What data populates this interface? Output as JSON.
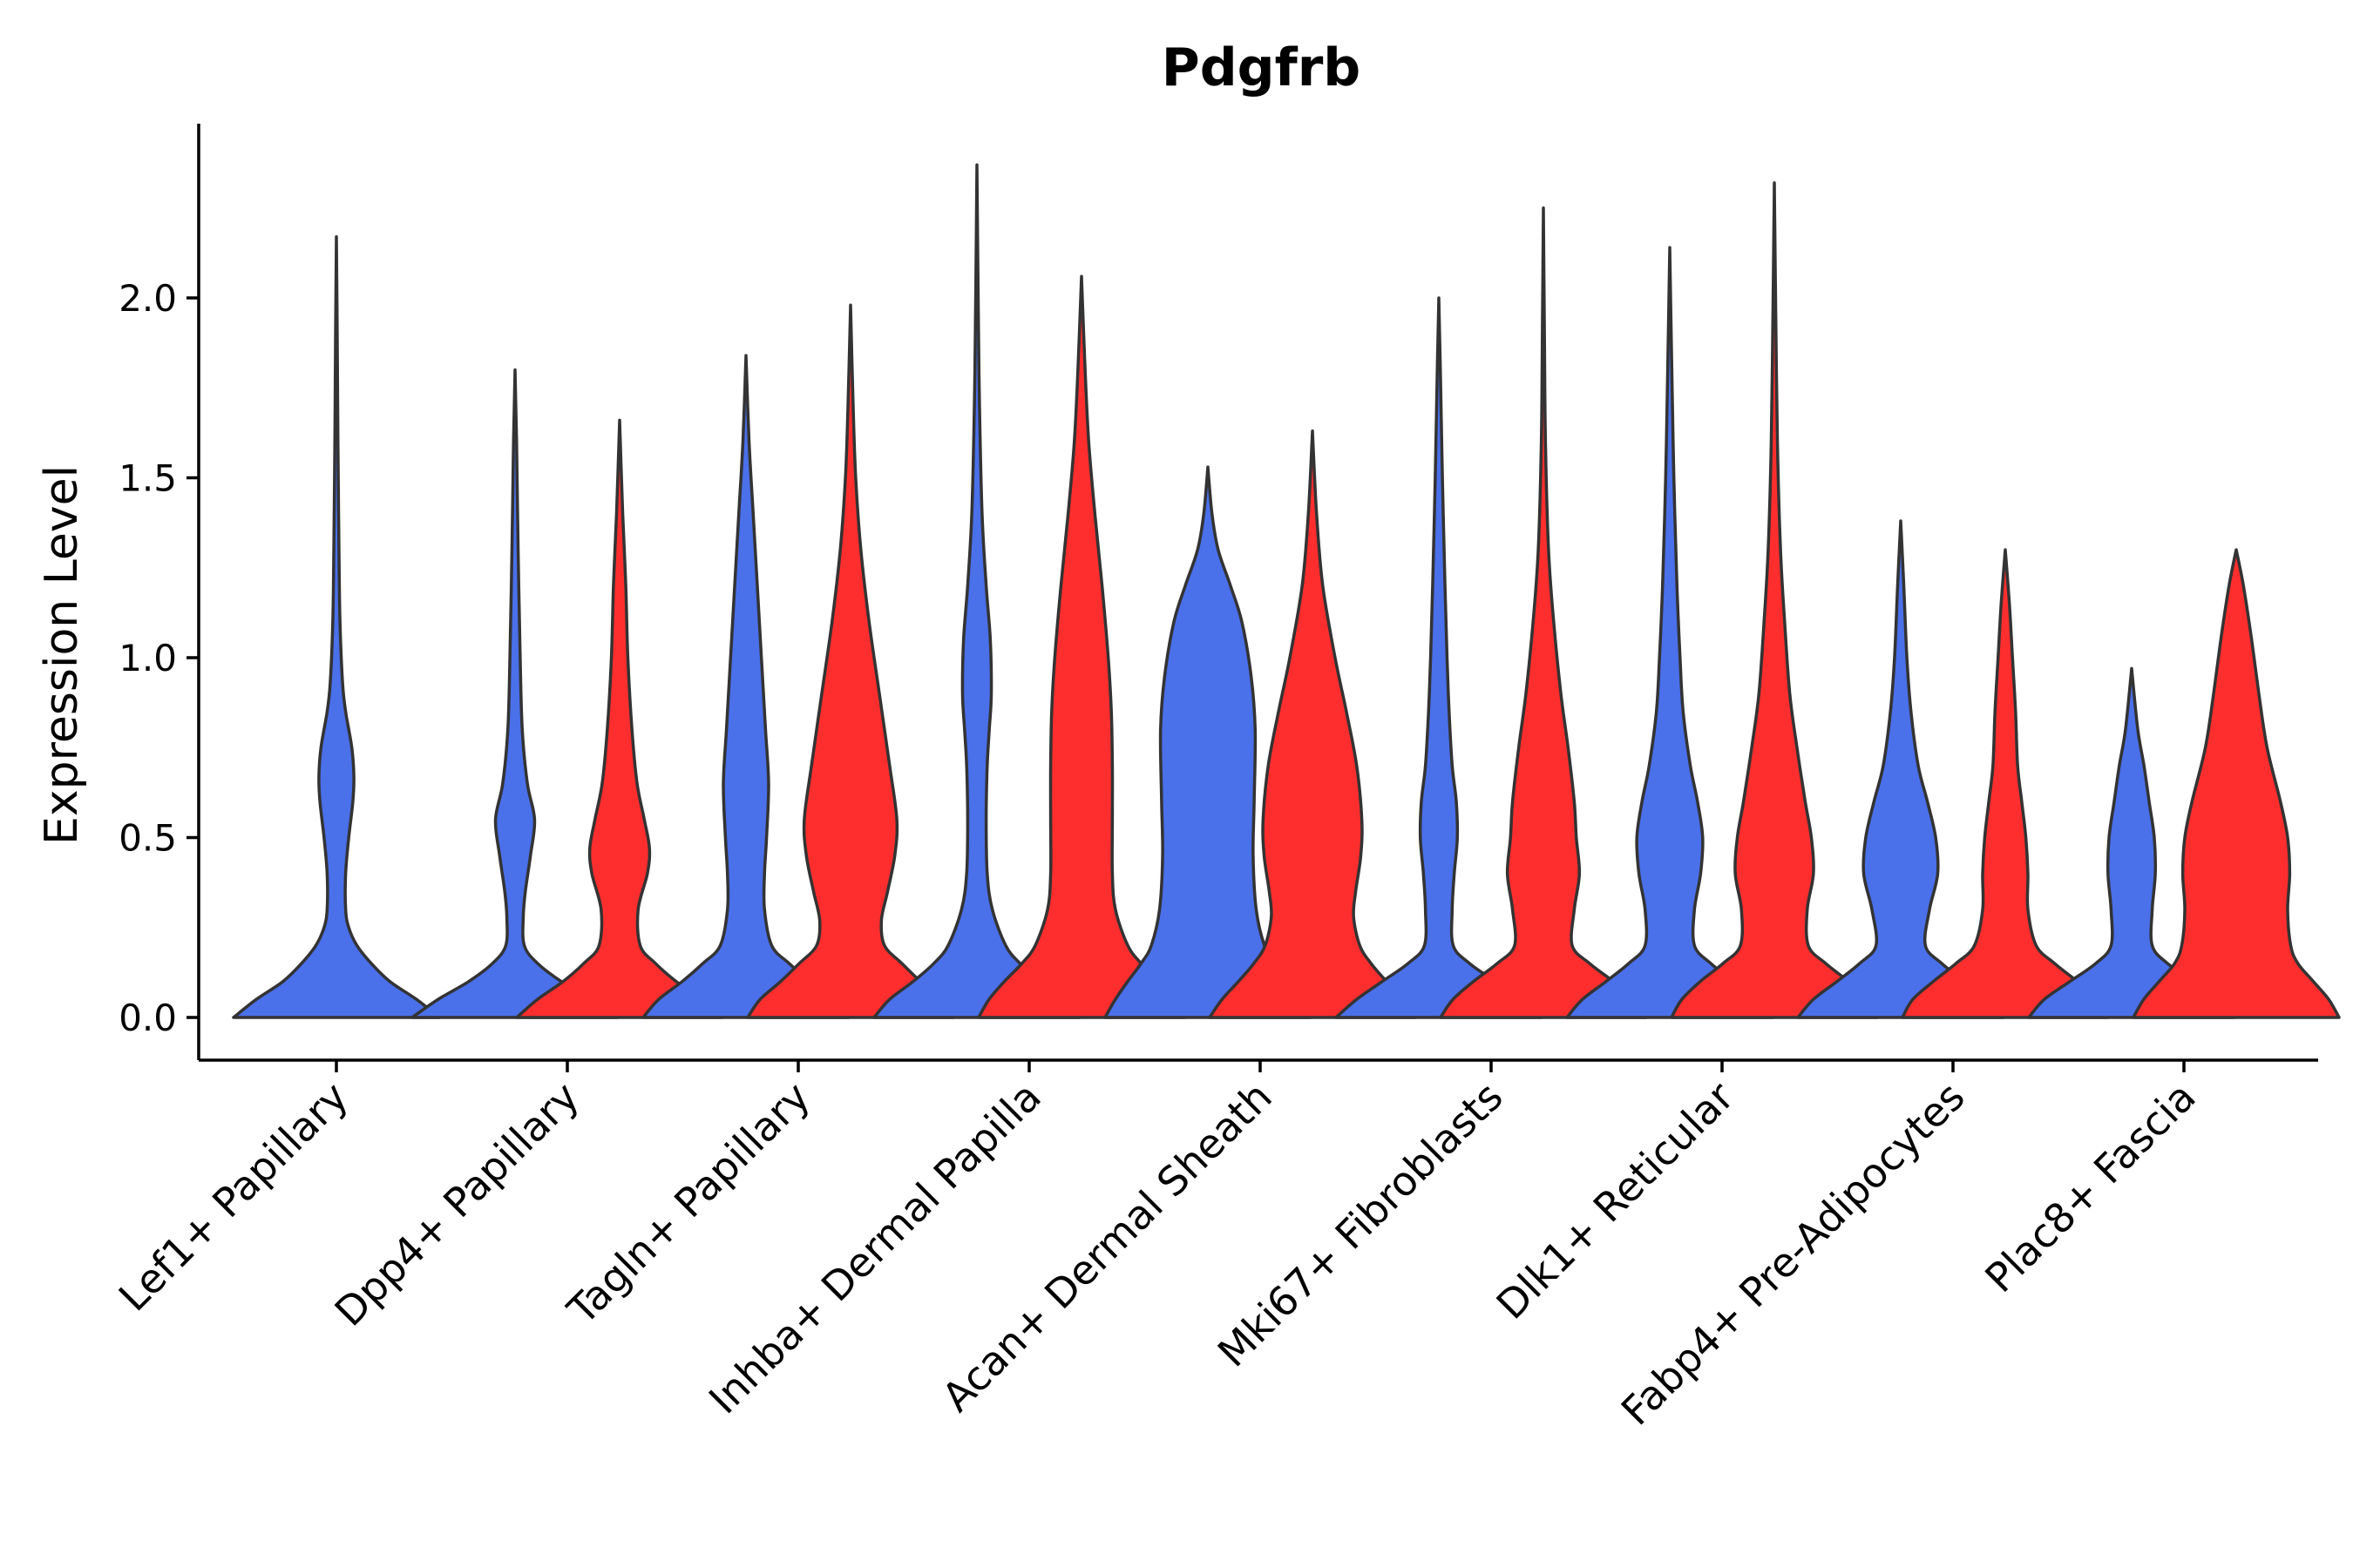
{
  "chart_data": {
    "type": "violin",
    "title": "Pdgfrb",
    "xlabel": "",
    "ylabel": "Expression Level",
    "ylim": [
      -0.12,
      2.5
    ],
    "yticks": [
      0.0,
      0.5,
      1.0,
      1.5,
      2.0
    ],
    "ytick_labels": [
      "0.0",
      "0.5",
      "1.0",
      "1.5",
      "2.0"
    ],
    "grid": false,
    "legend": "none",
    "series": [
      {
        "name": "group-blue",
        "color": "#4A70EA"
      },
      {
        "name": "group-red",
        "color": "#FF2E2E"
      }
    ],
    "categories": [
      "Lef1+ Papillary",
      "Dpp4+ Papillary",
      "Tagln+ Papillary",
      "Inhba+ Dermal Papilla",
      "Acan+ Dermal Sheath",
      "Mki67+ Fibroblasts",
      "Dlk1+ Reticular",
      "Fabp4+ Pre-Adipocytes",
      "Plac8+ Fascia"
    ],
    "violins": [
      {
        "category": "Lef1+ Papillary",
        "series": "group-blue",
        "max": 2.17,
        "profile": [
          [
            0,
            1.0
          ],
          [
            0.05,
            0.78
          ],
          [
            0.1,
            0.52
          ],
          [
            0.15,
            0.34
          ],
          [
            0.2,
            0.2
          ],
          [
            0.25,
            0.12
          ],
          [
            0.3,
            0.09
          ],
          [
            0.4,
            0.09
          ],
          [
            0.5,
            0.12
          ],
          [
            0.6,
            0.16
          ],
          [
            0.67,
            0.17
          ],
          [
            0.75,
            0.15
          ],
          [
            0.85,
            0.09
          ],
          [
            0.93,
            0.06
          ],
          [
            1.1,
            0.035
          ],
          [
            1.3,
            0.025
          ],
          [
            1.6,
            0.015
          ],
          [
            1.9,
            0.008
          ],
          [
            2.17,
            0
          ]
        ]
      },
      {
        "category": "Dpp4+ Papillary",
        "series": "group-blue",
        "max": 1.8,
        "profile": [
          [
            0,
            1.0
          ],
          [
            0.05,
            0.75
          ],
          [
            0.1,
            0.45
          ],
          [
            0.15,
            0.22
          ],
          [
            0.2,
            0.09
          ],
          [
            0.28,
            0.08
          ],
          [
            0.35,
            0.1
          ],
          [
            0.45,
            0.15
          ],
          [
            0.55,
            0.19
          ],
          [
            0.65,
            0.12
          ],
          [
            0.8,
            0.07
          ],
          [
            1.0,
            0.05
          ],
          [
            1.3,
            0.03
          ],
          [
            1.6,
            0.015
          ],
          [
            1.8,
            0
          ]
        ]
      },
      {
        "category": "Dpp4+ Papillary",
        "series": "group-red",
        "max": 1.66,
        "profile": [
          [
            0,
            1.0
          ],
          [
            0.05,
            0.8
          ],
          [
            0.1,
            0.55
          ],
          [
            0.15,
            0.35
          ],
          [
            0.2,
            0.2
          ],
          [
            0.3,
            0.18
          ],
          [
            0.4,
            0.27
          ],
          [
            0.47,
            0.29
          ],
          [
            0.55,
            0.24
          ],
          [
            0.65,
            0.17
          ],
          [
            0.8,
            0.12
          ],
          [
            1.0,
            0.08
          ],
          [
            1.2,
            0.06
          ],
          [
            1.4,
            0.03
          ],
          [
            1.66,
            0
          ]
        ]
      },
      {
        "category": "Tagln+ Papillary",
        "series": "group-blue",
        "max": 1.84,
        "profile": [
          [
            0,
            1.0
          ],
          [
            0.05,
            0.85
          ],
          [
            0.1,
            0.62
          ],
          [
            0.15,
            0.42
          ],
          [
            0.2,
            0.25
          ],
          [
            0.3,
            0.18
          ],
          [
            0.4,
            0.18
          ],
          [
            0.5,
            0.2
          ],
          [
            0.65,
            0.22
          ],
          [
            0.8,
            0.19
          ],
          [
            1.0,
            0.15
          ],
          [
            1.2,
            0.11
          ],
          [
            1.4,
            0.07
          ],
          [
            1.6,
            0.03
          ],
          [
            1.84,
            0
          ]
        ]
      },
      {
        "category": "Tagln+ Papillary",
        "series": "group-red",
        "max": 1.98,
        "profile": [
          [
            0,
            1.0
          ],
          [
            0.05,
            0.88
          ],
          [
            0.1,
            0.68
          ],
          [
            0.15,
            0.5
          ],
          [
            0.2,
            0.33
          ],
          [
            0.27,
            0.3
          ],
          [
            0.35,
            0.36
          ],
          [
            0.45,
            0.43
          ],
          [
            0.55,
            0.45
          ],
          [
            0.7,
            0.38
          ],
          [
            0.9,
            0.28
          ],
          [
            1.1,
            0.18
          ],
          [
            1.3,
            0.1
          ],
          [
            1.5,
            0.05
          ],
          [
            1.7,
            0.025
          ],
          [
            1.98,
            0
          ]
        ]
      },
      {
        "category": "Inhba+ Dermal Papilla",
        "series": "group-blue",
        "max": 2.37,
        "profile": [
          [
            0,
            1.0
          ],
          [
            0.05,
            0.85
          ],
          [
            0.1,
            0.62
          ],
          [
            0.15,
            0.42
          ],
          [
            0.2,
            0.28
          ],
          [
            0.3,
            0.15
          ],
          [
            0.4,
            0.1
          ],
          [
            0.55,
            0.09
          ],
          [
            0.7,
            0.1
          ],
          [
            0.8,
            0.12
          ],
          [
            0.9,
            0.14
          ],
          [
            1.05,
            0.13
          ],
          [
            1.2,
            0.09
          ],
          [
            1.4,
            0.05
          ],
          [
            1.7,
            0.025
          ],
          [
            2.0,
            0.012
          ],
          [
            2.37,
            0
          ]
        ]
      },
      {
        "category": "Inhba+ Dermal Papilla",
        "series": "group-red",
        "max": 2.06,
        "profile": [
          [
            0,
            1.0
          ],
          [
            0.05,
            0.9
          ],
          [
            0.1,
            0.75
          ],
          [
            0.15,
            0.58
          ],
          [
            0.2,
            0.45
          ],
          [
            0.3,
            0.33
          ],
          [
            0.4,
            0.3
          ],
          [
            0.55,
            0.3
          ],
          [
            0.7,
            0.3
          ],
          [
            0.85,
            0.29
          ],
          [
            1.0,
            0.26
          ],
          [
            1.2,
            0.2
          ],
          [
            1.4,
            0.13
          ],
          [
            1.6,
            0.07
          ],
          [
            1.8,
            0.035
          ],
          [
            2.06,
            0
          ]
        ]
      },
      {
        "category": "Acan+ Dermal Sheath",
        "series": "group-blue",
        "max": 1.53,
        "profile": [
          [
            0,
            1.0
          ],
          [
            0.05,
            0.9
          ],
          [
            0.1,
            0.78
          ],
          [
            0.15,
            0.65
          ],
          [
            0.2,
            0.55
          ],
          [
            0.3,
            0.47
          ],
          [
            0.45,
            0.44
          ],
          [
            0.6,
            0.45
          ],
          [
            0.8,
            0.46
          ],
          [
            0.95,
            0.42
          ],
          [
            1.1,
            0.33
          ],
          [
            1.2,
            0.22
          ],
          [
            1.3,
            0.1
          ],
          [
            1.4,
            0.04
          ],
          [
            1.53,
            0
          ]
        ]
      },
      {
        "category": "Acan+ Dermal Sheath",
        "series": "group-red",
        "max": 1.63,
        "profile": [
          [
            0,
            1.0
          ],
          [
            0.05,
            0.88
          ],
          [
            0.1,
            0.72
          ],
          [
            0.15,
            0.57
          ],
          [
            0.2,
            0.46
          ],
          [
            0.28,
            0.4
          ],
          [
            0.35,
            0.42
          ],
          [
            0.45,
            0.47
          ],
          [
            0.55,
            0.48
          ],
          [
            0.7,
            0.43
          ],
          [
            0.85,
            0.33
          ],
          [
            1.0,
            0.22
          ],
          [
            1.2,
            0.1
          ],
          [
            1.4,
            0.04
          ],
          [
            1.63,
            0
          ]
        ]
      },
      {
        "category": "Mki67+ Fibroblasts",
        "series": "group-blue",
        "max": 2.0,
        "profile": [
          [
            0,
            1.0
          ],
          [
            0.05,
            0.8
          ],
          [
            0.1,
            0.55
          ],
          [
            0.15,
            0.3
          ],
          [
            0.2,
            0.14
          ],
          [
            0.3,
            0.13
          ],
          [
            0.4,
            0.15
          ],
          [
            0.5,
            0.18
          ],
          [
            0.6,
            0.17
          ],
          [
            0.7,
            0.13
          ],
          [
            0.85,
            0.1
          ],
          [
            1.0,
            0.08
          ],
          [
            1.2,
            0.06
          ],
          [
            1.5,
            0.035
          ],
          [
            1.8,
            0.015
          ],
          [
            2.0,
            0
          ]
        ]
      },
      {
        "category": "Mki67+ Fibroblasts",
        "series": "group-red",
        "max": 2.25,
        "profile": [
          [
            0,
            1.0
          ],
          [
            0.05,
            0.88
          ],
          [
            0.1,
            0.68
          ],
          [
            0.15,
            0.45
          ],
          [
            0.2,
            0.28
          ],
          [
            0.3,
            0.3
          ],
          [
            0.4,
            0.35
          ],
          [
            0.5,
            0.32
          ],
          [
            0.6,
            0.3
          ],
          [
            0.75,
            0.24
          ],
          [
            0.9,
            0.17
          ],
          [
            1.1,
            0.1
          ],
          [
            1.3,
            0.05
          ],
          [
            1.6,
            0.02
          ],
          [
            1.9,
            0.01
          ],
          [
            2.25,
            0
          ]
        ]
      },
      {
        "category": "Dlk1+ Reticular",
        "series": "group-blue",
        "max": 2.14,
        "profile": [
          [
            0,
            1.0
          ],
          [
            0.05,
            0.85
          ],
          [
            0.1,
            0.62
          ],
          [
            0.15,
            0.4
          ],
          [
            0.2,
            0.24
          ],
          [
            0.3,
            0.24
          ],
          [
            0.4,
            0.3
          ],
          [
            0.5,
            0.32
          ],
          [
            0.6,
            0.27
          ],
          [
            0.7,
            0.2
          ],
          [
            0.85,
            0.13
          ],
          [
            1.0,
            0.1
          ],
          [
            1.2,
            0.07
          ],
          [
            1.5,
            0.04
          ],
          [
            1.8,
            0.02
          ],
          [
            2.14,
            0
          ]
        ]
      },
      {
        "category": "Dlk1+ Reticular",
        "series": "group-red",
        "max": 2.32,
        "profile": [
          [
            0,
            1.0
          ],
          [
            0.05,
            0.9
          ],
          [
            0.1,
            0.72
          ],
          [
            0.15,
            0.5
          ],
          [
            0.2,
            0.33
          ],
          [
            0.3,
            0.32
          ],
          [
            0.4,
            0.38
          ],
          [
            0.5,
            0.36
          ],
          [
            0.6,
            0.3
          ],
          [
            0.75,
            0.22
          ],
          [
            0.9,
            0.15
          ],
          [
            1.1,
            0.1
          ],
          [
            1.3,
            0.06
          ],
          [
            1.6,
            0.03
          ],
          [
            2.0,
            0.012
          ],
          [
            2.32,
            0
          ]
        ]
      },
      {
        "category": "Fabp4+ Pre-Adipocytes",
        "series": "group-blue",
        "max": 1.38,
        "profile": [
          [
            0,
            1.0
          ],
          [
            0.05,
            0.85
          ],
          [
            0.1,
            0.62
          ],
          [
            0.15,
            0.4
          ],
          [
            0.2,
            0.24
          ],
          [
            0.3,
            0.28
          ],
          [
            0.4,
            0.36
          ],
          [
            0.5,
            0.34
          ],
          [
            0.6,
            0.26
          ],
          [
            0.7,
            0.17
          ],
          [
            0.85,
            0.1
          ],
          [
            1.0,
            0.06
          ],
          [
            1.2,
            0.03
          ],
          [
            1.38,
            0
          ]
        ]
      },
      {
        "category": "Fabp4+ Pre-Adipocytes",
        "series": "group-red",
        "max": 1.3,
        "profile": [
          [
            0,
            1.0
          ],
          [
            0.05,
            0.9
          ],
          [
            0.1,
            0.7
          ],
          [
            0.15,
            0.48
          ],
          [
            0.2,
            0.3
          ],
          [
            0.3,
            0.22
          ],
          [
            0.4,
            0.22
          ],
          [
            0.5,
            0.2
          ],
          [
            0.6,
            0.16
          ],
          [
            0.7,
            0.12
          ],
          [
            0.85,
            0.1
          ],
          [
            1.0,
            0.07
          ],
          [
            1.15,
            0.04
          ],
          [
            1.3,
            0
          ]
        ]
      },
      {
        "category": "Plac8+ Fascia",
        "series": "group-blue",
        "max": 0.97,
        "profile": [
          [
            0,
            1.0
          ],
          [
            0.05,
            0.85
          ],
          [
            0.1,
            0.6
          ],
          [
            0.15,
            0.35
          ],
          [
            0.2,
            0.2
          ],
          [
            0.3,
            0.2
          ],
          [
            0.4,
            0.23
          ],
          [
            0.5,
            0.22
          ],
          [
            0.6,
            0.17
          ],
          [
            0.7,
            0.12
          ],
          [
            0.8,
            0.06
          ],
          [
            0.97,
            0
          ]
        ]
      },
      {
        "category": "Plac8+ Fascia",
        "series": "group-red",
        "max": 1.3,
        "profile": [
          [
            0,
            1.0
          ],
          [
            0.05,
            0.9
          ],
          [
            0.1,
            0.75
          ],
          [
            0.15,
            0.6
          ],
          [
            0.2,
            0.53
          ],
          [
            0.3,
            0.5
          ],
          [
            0.4,
            0.52
          ],
          [
            0.5,
            0.5
          ],
          [
            0.6,
            0.43
          ],
          [
            0.75,
            0.3
          ],
          [
            0.9,
            0.22
          ],
          [
            1.05,
            0.15
          ],
          [
            1.2,
            0.07
          ],
          [
            1.3,
            0
          ]
        ]
      }
    ]
  }
}
